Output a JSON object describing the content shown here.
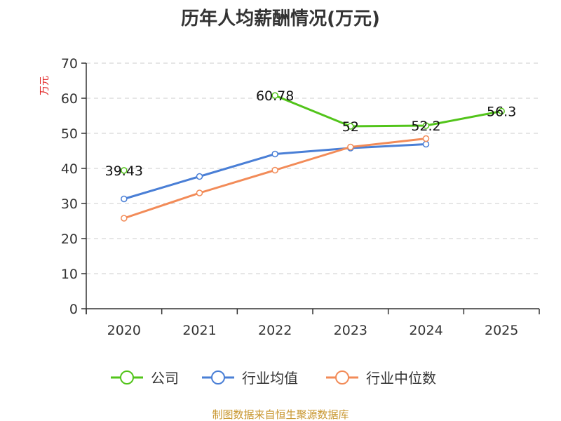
{
  "chart_data": {
    "type": "line",
    "title": "历年人均薪酬情况(万元)",
    "ylabel": "万元",
    "xlabel": "",
    "categories": [
      "2020",
      "2021",
      "2022",
      "2023",
      "2024",
      "2025"
    ],
    "ylim": [
      0,
      70
    ],
    "yticks": [
      0,
      10,
      20,
      30,
      40,
      50,
      60,
      70
    ],
    "grid": true,
    "legend_position": "bottom",
    "series": [
      {
        "name": "公司",
        "color": "#52c41a",
        "values": [
          39.43,
          null,
          60.78,
          52,
          52.2,
          56.3
        ],
        "labels": [
          "39.43",
          null,
          "60.78",
          "52",
          "52.2",
          "56.3"
        ]
      },
      {
        "name": "行业均值",
        "color": "#4a7fd6",
        "values": [
          31.3,
          37.7,
          44.1,
          45.8,
          46.9,
          null
        ]
      },
      {
        "name": "行业中位数",
        "color": "#f28b58",
        "values": [
          25.8,
          33.0,
          39.5,
          46.1,
          48.5,
          null
        ]
      }
    ]
  },
  "source": {
    "text": "制图数据来自恒生聚源数据库",
    "color": "#c8962e"
  },
  "colors": {
    "ylabel": "#e02020",
    "axis": "#333333",
    "grid": "#cccccc"
  }
}
